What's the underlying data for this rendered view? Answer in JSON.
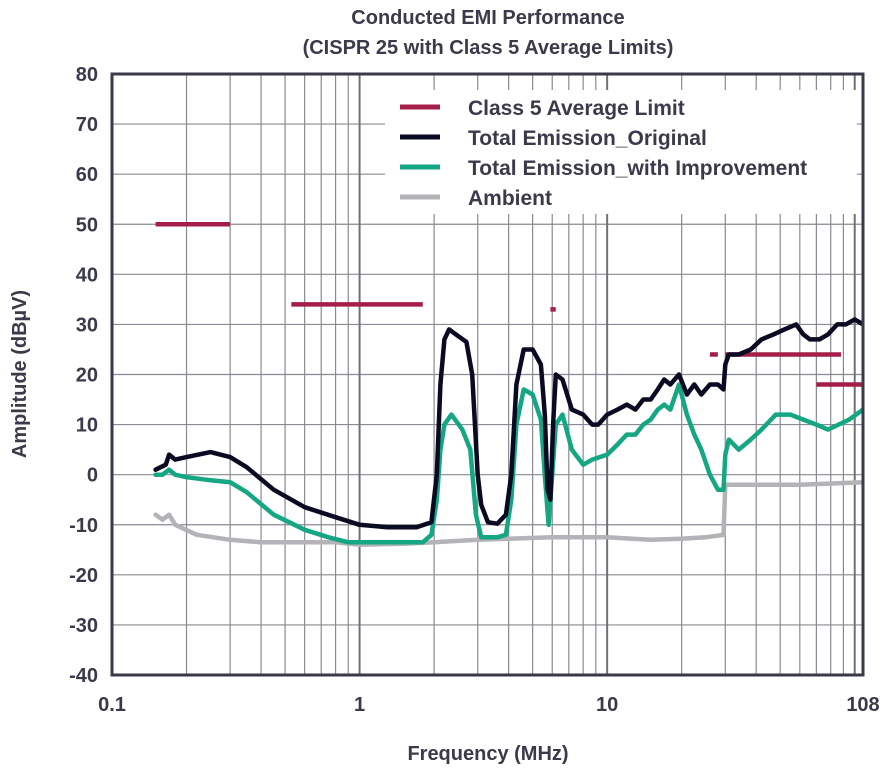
{
  "chart_data": {
    "type": "line",
    "title_line1": "Conducted EMI Performance",
    "title_line2": "(CISPR 25 with Class 5 Average Limits)",
    "xlabel": "Frequency (MHz)",
    "ylabel": "Amplitude (dBµV)",
    "x_scale": "log",
    "xlim": [
      0.1,
      108
    ],
    "ylim": [
      -40,
      80
    ],
    "x_ticks": [
      {
        "value": 0.1,
        "label": "0.1"
      },
      {
        "value": 1,
        "label": "1"
      },
      {
        "value": 10,
        "label": "10"
      },
      {
        "value": 108,
        "label": "108"
      }
    ],
    "y_ticks": [
      {
        "value": 80,
        "label": "80"
      },
      {
        "value": 70,
        "label": "70"
      },
      {
        "value": 60,
        "label": "60"
      },
      {
        "value": 50,
        "label": "50"
      },
      {
        "value": 40,
        "label": "40"
      },
      {
        "value": 30,
        "label": "30"
      },
      {
        "value": 20,
        "label": "20"
      },
      {
        "value": 10,
        "label": "10"
      },
      {
        "value": 0,
        "label": "0"
      },
      {
        "value": -10,
        "label": "-10"
      },
      {
        "value": -20,
        "label": "-20"
      },
      {
        "value": -30,
        "label": "-30"
      },
      {
        "value": -40,
        "label": "-40"
      }
    ],
    "grid": true,
    "legend_position": "top-right",
    "series": [
      {
        "name": "Class 5 Average Limit",
        "color": "#a51e47",
        "segments": [
          [
            [
              0.15,
              50
            ],
            [
              0.3,
              50
            ]
          ],
          [
            [
              0.53,
              34
            ],
            [
              1.8,
              34
            ]
          ],
          [
            [
              5.9,
              33
            ],
            [
              6.2,
              33
            ]
          ],
          [
            [
              26,
              24
            ],
            [
              28,
              24
            ]
          ],
          [
            [
              30,
              24
            ],
            [
              88,
              24
            ]
          ],
          [
            [
              70,
              18
            ],
            [
              108,
              18
            ]
          ]
        ]
      },
      {
        "name": "Total Emission_Original",
        "color": "#0a0a22",
        "points": [
          [
            0.15,
            1
          ],
          [
            0.165,
            2
          ],
          [
            0.17,
            4
          ],
          [
            0.18,
            3
          ],
          [
            0.2,
            3.5
          ],
          [
            0.25,
            4.5
          ],
          [
            0.3,
            3.5
          ],
          [
            0.35,
            1.5
          ],
          [
            0.45,
            -3
          ],
          [
            0.6,
            -6.5
          ],
          [
            0.8,
            -8.5
          ],
          [
            1.0,
            -10
          ],
          [
            1.3,
            -10.5
          ],
          [
            1.7,
            -10.5
          ],
          [
            1.95,
            -9.5
          ],
          [
            2.05,
            0
          ],
          [
            2.12,
            18
          ],
          [
            2.2,
            27
          ],
          [
            2.3,
            29
          ],
          [
            2.45,
            28
          ],
          [
            2.7,
            26.5
          ],
          [
            2.85,
            20
          ],
          [
            3.0,
            0
          ],
          [
            3.1,
            -6
          ],
          [
            3.3,
            -9.5
          ],
          [
            3.6,
            -9.8
          ],
          [
            3.9,
            -8
          ],
          [
            4.1,
            0
          ],
          [
            4.3,
            18
          ],
          [
            4.6,
            25
          ],
          [
            5.0,
            25
          ],
          [
            5.4,
            22
          ],
          [
            5.6,
            12
          ],
          [
            5.75,
            -3
          ],
          [
            5.9,
            -5
          ],
          [
            6.05,
            10
          ],
          [
            6.2,
            20
          ],
          [
            6.6,
            19
          ],
          [
            7.2,
            13
          ],
          [
            8.0,
            12
          ],
          [
            8.7,
            10
          ],
          [
            9.2,
            10
          ],
          [
            10,
            12
          ],
          [
            11,
            13
          ],
          [
            12,
            14
          ],
          [
            13,
            13
          ],
          [
            14,
            15
          ],
          [
            15,
            15
          ],
          [
            16,
            17
          ],
          [
            17,
            19
          ],
          [
            18,
            18
          ],
          [
            19.5,
            20
          ],
          [
            21,
            16
          ],
          [
            22.5,
            18
          ],
          [
            24,
            16
          ],
          [
            26,
            18
          ],
          [
            28,
            18
          ],
          [
            29.5,
            17
          ],
          [
            30,
            22
          ],
          [
            31,
            24
          ],
          [
            34,
            24
          ],
          [
            38,
            25
          ],
          [
            42,
            27
          ],
          [
            47,
            28
          ],
          [
            52,
            29
          ],
          [
            58,
            30
          ],
          [
            62,
            28
          ],
          [
            66,
            27
          ],
          [
            72,
            27
          ],
          [
            78,
            28
          ],
          [
            85,
            30
          ],
          [
            92,
            30
          ],
          [
            100,
            31
          ],
          [
            108,
            30
          ]
        ]
      },
      {
        "name": "Total Emission_with Improvement",
        "color": "#15a683",
        "points": [
          [
            0.15,
            0
          ],
          [
            0.16,
            0
          ],
          [
            0.17,
            1
          ],
          [
            0.18,
            0
          ],
          [
            0.2,
            -0.5
          ],
          [
            0.24,
            -1
          ],
          [
            0.3,
            -1.5
          ],
          [
            0.35,
            -3.5
          ],
          [
            0.45,
            -8
          ],
          [
            0.6,
            -11
          ],
          [
            0.75,
            -12.5
          ],
          [
            0.9,
            -13.5
          ],
          [
            1.1,
            -13.5
          ],
          [
            1.4,
            -13.5
          ],
          [
            1.8,
            -13.5
          ],
          [
            1.95,
            -12
          ],
          [
            2.05,
            -5
          ],
          [
            2.12,
            5
          ],
          [
            2.2,
            10
          ],
          [
            2.35,
            12
          ],
          [
            2.6,
            9
          ],
          [
            2.8,
            5
          ],
          [
            2.95,
            -8
          ],
          [
            3.1,
            -12.5
          ],
          [
            3.6,
            -12.5
          ],
          [
            3.9,
            -12
          ],
          [
            4.1,
            -5
          ],
          [
            4.3,
            10
          ],
          [
            4.6,
            17
          ],
          [
            5.0,
            16
          ],
          [
            5.4,
            11
          ],
          [
            5.6,
            0
          ],
          [
            5.8,
            -10
          ],
          [
            6.0,
            0
          ],
          [
            6.2,
            10
          ],
          [
            6.6,
            12
          ],
          [
            7.2,
            5
          ],
          [
            8.0,
            2
          ],
          [
            8.7,
            3
          ],
          [
            10,
            4
          ],
          [
            11,
            6
          ],
          [
            12,
            8
          ],
          [
            13,
            8
          ],
          [
            14,
            10
          ],
          [
            15,
            11
          ],
          [
            16,
            13
          ],
          [
            17,
            14
          ],
          [
            18,
            13
          ],
          [
            19.5,
            18
          ],
          [
            21,
            12
          ],
          [
            22.5,
            8
          ],
          [
            24,
            5
          ],
          [
            26,
            0
          ],
          [
            28,
            -3
          ],
          [
            29.5,
            -3
          ],
          [
            30,
            4
          ],
          [
            31,
            7
          ],
          [
            34,
            5
          ],
          [
            38,
            7
          ],
          [
            42,
            9
          ],
          [
            48,
            12
          ],
          [
            55,
            12
          ],
          [
            62,
            11
          ],
          [
            70,
            10
          ],
          [
            78,
            9
          ],
          [
            86,
            10
          ],
          [
            95,
            11
          ],
          [
            108,
            13
          ]
        ]
      },
      {
        "name": "Ambient",
        "color": "#b3b3b8",
        "points": [
          [
            0.15,
            -8
          ],
          [
            0.16,
            -9
          ],
          [
            0.17,
            -8
          ],
          [
            0.18,
            -10
          ],
          [
            0.22,
            -12
          ],
          [
            0.3,
            -13
          ],
          [
            0.4,
            -13.5
          ],
          [
            0.6,
            -13.5
          ],
          [
            0.8,
            -13.5
          ],
          [
            1.0,
            -14
          ],
          [
            1.5,
            -13.8
          ],
          [
            2.0,
            -13.5
          ],
          [
            3.0,
            -13
          ],
          [
            4.0,
            -12.8
          ],
          [
            6.0,
            -12.5
          ],
          [
            10,
            -12.5
          ],
          [
            15,
            -13
          ],
          [
            20,
            -12.8
          ],
          [
            25,
            -12.5
          ],
          [
            29.5,
            -12
          ],
          [
            30,
            -2
          ],
          [
            33,
            -2
          ],
          [
            40,
            -2
          ],
          [
            60,
            -2
          ],
          [
            108,
            -1.5
          ]
        ]
      }
    ]
  }
}
